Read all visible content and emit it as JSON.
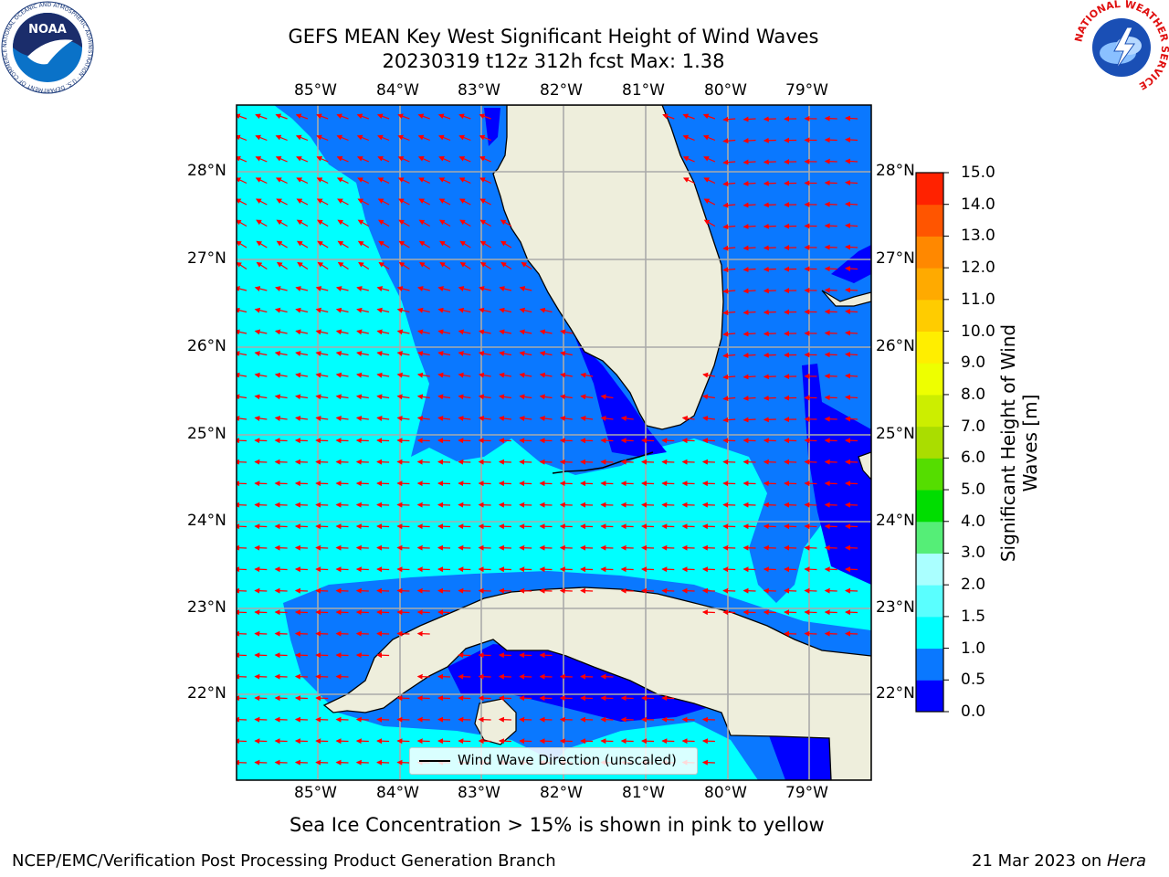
{
  "title_line1": "GEFS MEAN Key West Significant Height of Wind Waves",
  "title_line2": "20230319 t12z 312h fcst   Max: 1.38",
  "lon_ticks": [
    "85°W",
    "84°W",
    "83°W",
    "82°W",
    "81°W",
    "80°W",
    "79°W"
  ],
  "lat_ticks": [
    "28°N",
    "27°N",
    "26°N",
    "25°N",
    "24°N",
    "23°N",
    "22°N"
  ],
  "colorbar": {
    "label": "Significant Height of Wind Waves [m]",
    "ticks": [
      "0.0",
      "0.5",
      "1.0",
      "1.5",
      "2.0",
      "3.0",
      "4.0",
      "5.0",
      "6.0",
      "7.0",
      "8.0",
      "9.0",
      "10.0",
      "11.0",
      "12.0",
      "13.0",
      "14.0",
      "15.0"
    ],
    "colors": [
      "#0000ff",
      "#0a78ff",
      "#00ffff",
      "#5affff",
      "#aaffff",
      "#55ee77",
      "#00dd00",
      "#55dd00",
      "#aadd00",
      "#ccee00",
      "#eeff00",
      "#ffee00",
      "#ffcc00",
      "#ffaa00",
      "#ff8800",
      "#ff5500",
      "#ff2200"
    ]
  },
  "legend_label": "Wind Wave Direction (unscaled)",
  "sea_ice_note": "Sea Ice Concentration > 15% is shown in pink to yellow",
  "footer_left": "NCEP/EMC/Verification Post Processing Product Generation Branch",
  "footer_right_date": "21 Mar 2023 on ",
  "footer_right_host": "Hera",
  "logos": {
    "noaa_text": "NOAA",
    "noaa_ring": "NATIONAL OCEANIC AND ATMOSPHERIC ADMINISTRATION · U.S. DEPARTMENT OF COMMERCE",
    "nws_ring": "NATIONAL WEATHER SERVICE"
  },
  "colors": {
    "land": "#eeeedc",
    "arrows": "#ff0000",
    "grid": "#aaaaaa"
  }
}
